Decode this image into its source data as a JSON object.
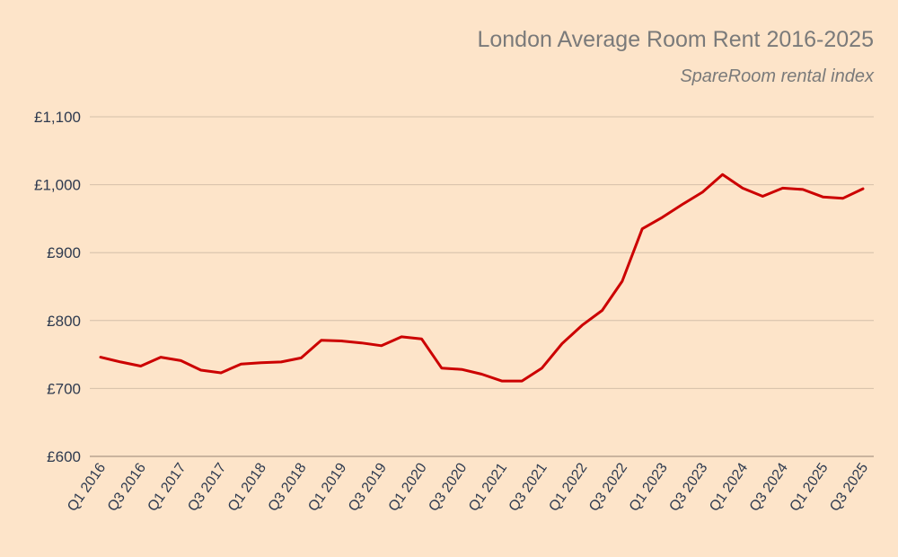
{
  "chart": {
    "title": "London Average Room Rent 2016-2025",
    "subtitle": "SpareRoom rental index"
  },
  "chart_data": {
    "type": "line",
    "title": "London Average Room Rent 2016-2025",
    "subtitle": "SpareRoom rental index",
    "ylim": [
      600,
      1100
    ],
    "y_ticks": [
      600,
      700,
      800,
      900,
      1000,
      1100
    ],
    "y_tick_labels": [
      "£600",
      "£700",
      "£800",
      "£900",
      "£1,000",
      "£1,100"
    ],
    "x_tick_labels": [
      "Q1 2016",
      "Q3 2016",
      "Q1 2017",
      "Q3 2017",
      "Q1 2018",
      "Q3 2018",
      "Q1 2019",
      "Q3 2019",
      "Q1 2020",
      "Q3 2020",
      "Q1 2021",
      "Q3 2021",
      "Q1 2022",
      "Q3 2022",
      "Q1 2023",
      "Q3 2023",
      "Q1 2024",
      "Q3 2024",
      "Q1 2025",
      "Q3 2025"
    ],
    "x": [
      "Q1 2016",
      "Q2 2016",
      "Q3 2016",
      "Q4 2016",
      "Q1 2017",
      "Q2 2017",
      "Q3 2017",
      "Q4 2017",
      "Q1 2018",
      "Q2 2018",
      "Q3 2018",
      "Q4 2018",
      "Q1 2019",
      "Q2 2019",
      "Q3 2019",
      "Q4 2019",
      "Q1 2020",
      "Q2 2020",
      "Q3 2020",
      "Q4 2020",
      "Q1 2021",
      "Q2 2021",
      "Q3 2021",
      "Q4 2021",
      "Q1 2022",
      "Q2 2022",
      "Q3 2022",
      "Q4 2022",
      "Q1 2023",
      "Q2 2023",
      "Q3 2023",
      "Q4 2023",
      "Q1 2024",
      "Q2 2024",
      "Q3 2024",
      "Q4 2024",
      "Q1 2025",
      "Q2 2025",
      "Q3 2025"
    ],
    "series": [
      {
        "color": "#cc0000",
        "values": [
          746,
          739,
          733,
          746,
          741,
          727,
          723,
          736,
          738,
          739,
          745,
          771,
          770,
          767,
          763,
          776,
          773,
          730,
          728,
          721,
          711,
          711,
          730,
          766,
          793,
          815,
          858,
          935,
          952,
          971,
          989,
          1015,
          995,
          983,
          995,
          993,
          982,
          980,
          994
        ]
      }
    ],
    "grid": true,
    "legend": "none"
  }
}
